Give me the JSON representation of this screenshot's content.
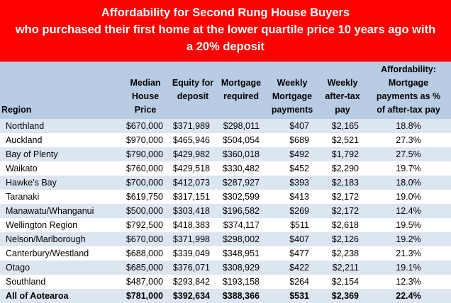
{
  "title": {
    "line1": "Affordability for Second Rung House Buyers",
    "line2": "who purchased their first home at the lower quartile price 10 years ago with",
    "line3": "a 20% deposit"
  },
  "table": {
    "headers": {
      "region": "Region",
      "median": [
        "Median",
        "House",
        "Price"
      ],
      "equity": [
        "Equity for",
        "deposit"
      ],
      "mortgage": [
        "Mortgage",
        "required"
      ],
      "weekly_payments": [
        "Weekly",
        "Mortgage",
        "payments"
      ],
      "after_tax": [
        "Weekly",
        "after-tax",
        "pay"
      ],
      "affordability": [
        "Affordability:",
        "Mortgage",
        "payments as %",
        "of after-tax pay"
      ]
    },
    "rows": [
      {
        "region": "Northland",
        "median": "$670,000",
        "equity": "$371,989",
        "mortgage": "$298,011",
        "weekly": "$407",
        "pay": "$2,165",
        "aff": "18.8%"
      },
      {
        "region": "Auckland",
        "median": "$970,000",
        "equity": "$465,946",
        "mortgage": "$504,054",
        "weekly": "$689",
        "pay": "$2,521",
        "aff": "27.3%"
      },
      {
        "region": "Bay of Plenty",
        "median": "$790,000",
        "equity": "$429,982",
        "mortgage": "$360,018",
        "weekly": "$492",
        "pay": "$1,792",
        "aff": "27.5%"
      },
      {
        "region": "Waikato",
        "median": "$760,000",
        "equity": "$429,518",
        "mortgage": "$330,482",
        "weekly": "$452",
        "pay": "$2,290",
        "aff": "19.7%"
      },
      {
        "region": "Hawke's Bay",
        "median": "$700,000",
        "equity": "$412,073",
        "mortgage": "$287,927",
        "weekly": "$393",
        "pay": "$2,183",
        "aff": "18.0%"
      },
      {
        "region": "Taranaki",
        "median": "$619,750",
        "equity": "$317,151",
        "mortgage": "$302,599",
        "weekly": "$413",
        "pay": "$2,172",
        "aff": "19.0%"
      },
      {
        "region": "Manawatu/Whanganui",
        "median": "$500,000",
        "equity": "$303,418",
        "mortgage": "$196,582",
        "weekly": "$269",
        "pay": "$2,172",
        "aff": "12.4%"
      },
      {
        "region": "Wellington Region",
        "median": "$792,500",
        "equity": "$418,383",
        "mortgage": "$374,117",
        "weekly": "$511",
        "pay": "$2,618",
        "aff": "19.5%"
      },
      {
        "region": "Nelson/Marlborough",
        "median": "$670,000",
        "equity": "$371,998",
        "mortgage": "$298,002",
        "weekly": "$407",
        "pay": "$2,126",
        "aff": "19.2%"
      },
      {
        "region": "Canterbury/Westland",
        "median": "$688,000",
        "equity": "$339,049",
        "mortgage": "$348,951",
        "weekly": "$477",
        "pay": "$2,238",
        "aff": "21.3%"
      },
      {
        "region": "Otago",
        "median": "$685,000",
        "equity": "$376,071",
        "mortgage": "$308,929",
        "weekly": "$422",
        "pay": "$2,211",
        "aff": "19.1%"
      },
      {
        "region": "Southland",
        "median": "$487,000",
        "equity": "$293,842",
        "mortgage": "$193,158",
        "weekly": "$264",
        "pay": "$2,154",
        "aff": "12.3%"
      }
    ],
    "total": {
      "region": "All of Aotearoa",
      "median": "$781,000",
      "equity": "$392,634",
      "mortgage": "$388,366",
      "weekly": "$531",
      "pay": "$2,369",
      "aff": "22.4%"
    }
  }
}
